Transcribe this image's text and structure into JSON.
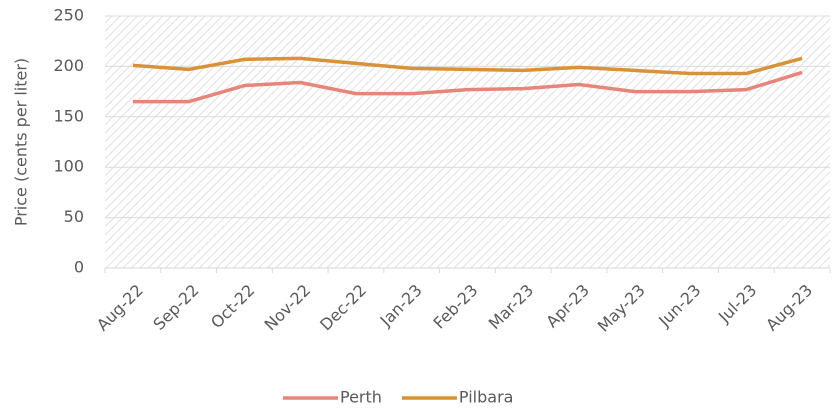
{
  "chart_data": {
    "type": "line",
    "y_label": "Price (cents per liter)",
    "categories": [
      "Aug-22",
      "Sep-22",
      "Oct-22",
      "Nov-22",
      "Dec-22",
      "Jan-23",
      "Feb-23",
      "Mar-23",
      "Apr-23",
      "May-23",
      "Jun-23",
      "Jul-23",
      "Aug-23"
    ],
    "series": [
      {
        "name": "Perth",
        "color": "#e8857a",
        "values": [
          165,
          165,
          181,
          184,
          173,
          173,
          177,
          178,
          182,
          175,
          175,
          177,
          194
        ]
      },
      {
        "name": "Pilbara",
        "color": "#d9923a",
        "values": [
          201,
          197,
          207,
          208,
          203,
          198,
          197,
          196,
          199,
          196,
          193,
          193,
          208
        ]
      }
    ],
    "ylim": [
      0,
      250
    ],
    "yticks": [
      0,
      50,
      100,
      150,
      200,
      250
    ],
    "grid": true,
    "legend": "bottom"
  }
}
